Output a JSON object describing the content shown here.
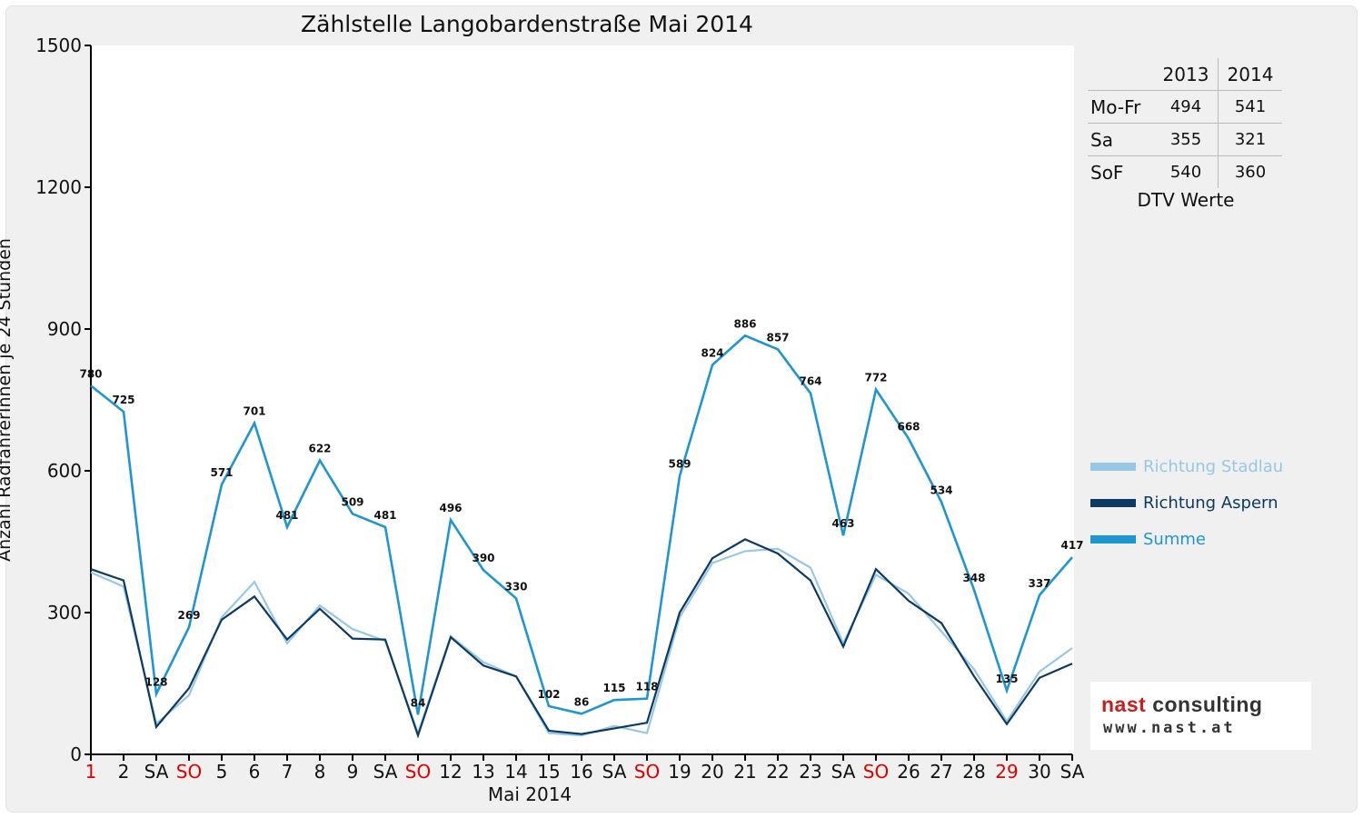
{
  "chart_data": {
    "type": "line",
    "title": "Zählstelle Langobardenstraße Mai 2014",
    "ylabel": "Anzahl RadfahrerInnen je 24 Stunden",
    "xlabel": "Mai 2014",
    "ylim": [
      0,
      1500
    ],
    "yticks": [
      "0",
      "300",
      "600",
      "900",
      "1200",
      "1500"
    ],
    "grid": false,
    "legend_position": "right",
    "categories": [
      "1",
      "2",
      "SA",
      "SO",
      "5",
      "6",
      "7",
      "8",
      "9",
      "SA",
      "SO",
      "12",
      "13",
      "14",
      "15",
      "16",
      "SA",
      "SO",
      "19",
      "20",
      "21",
      "22",
      "23",
      "SA",
      "SO",
      "26",
      "27",
      "28",
      "29",
      "30",
      "SA"
    ],
    "highlighted_categories": [
      0,
      3,
      10,
      17,
      24,
      28
    ],
    "series": [
      {
        "name": "Richtung Stadlau",
        "color": "#96c8e6",
        "values": [
          385,
          355,
          65,
          125,
          290,
          365,
          235,
          315,
          265,
          240,
          45,
          250,
          195,
          165,
          45,
          40,
          60,
          45,
          290,
          405,
          430,
          435,
          395,
          235,
          380,
          340,
          260,
          180,
          70,
          175,
          225
        ]
      },
      {
        "name": "Richtung Aspern",
        "color": "#0d3a63",
        "values": [
          392,
          368,
          58,
          140,
          285,
          334,
          243,
          308,
          245,
          243,
          40,
          248,
          188,
          165,
          50,
          43,
          55,
          67,
          300,
          415,
          455,
          425,
          368,
          228,
          392,
          325,
          278,
          165,
          64,
          162,
          192
        ]
      },
      {
        "name": "Summe",
        "color": "#1e96d2",
        "values": [
          780,
          725,
          128,
          269,
          571,
          701,
          481,
          622,
          509,
          481,
          84,
          496,
          390,
          330,
          102,
          86,
          115,
          118,
          589,
          824,
          886,
          857,
          764,
          463,
          772,
          668,
          534,
          348,
          135,
          337,
          417
        ]
      }
    ],
    "data_labels": [
      "780",
      "725",
      "128",
      "269",
      "571",
      "701",
      "481",
      "622",
      "509",
      "481",
      "84",
      "496",
      "390",
      "330",
      "102",
      "86",
      "115",
      "118",
      "589",
      "824",
      "886",
      "857",
      "764",
      "463",
      "772",
      "668",
      "534",
      "348",
      "135",
      "337",
      "417"
    ]
  },
  "dtv_table": {
    "headers": [
      "2013",
      "2014"
    ],
    "rows": [
      {
        "label": "Mo-Fr",
        "y2013": "494",
        "y2014": "541"
      },
      {
        "label": "Sa",
        "y2013": "355",
        "y2014": "321"
      },
      {
        "label": "SoF",
        "y2013": "540",
        "y2014": "360"
      }
    ],
    "caption": "DTV Werte"
  },
  "logo": {
    "brand_part1": "nast",
    "brand_part2": "consulting",
    "url": "www.nast.at",
    "color1": "#c81e1e",
    "color2": "#333333"
  },
  "colors": {
    "highlight": "#e00000",
    "axis": "#000000",
    "background": "#f0f0f0"
  }
}
